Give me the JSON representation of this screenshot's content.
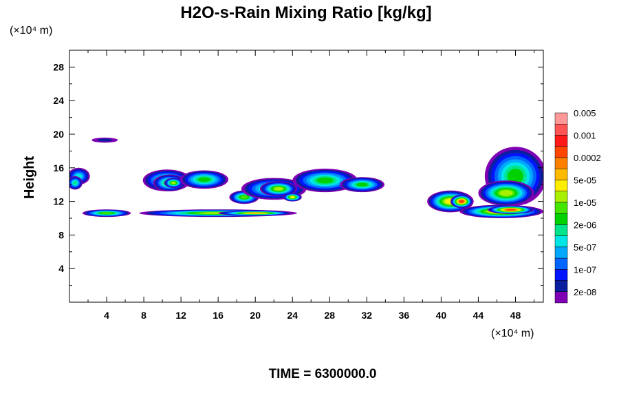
{
  "chart_data": {
    "type": "heatmap",
    "title": "H2O-s-Rain Mixing Ratio [kg/kg]",
    "xlabel": "",
    "ylabel": "Height",
    "x_unit": "(×10⁴ m)",
    "y_unit": "(×10⁴ m)",
    "xlim": [
      0,
      51
    ],
    "ylim": [
      0,
      30
    ],
    "x_ticks": [
      4,
      8,
      12,
      16,
      20,
      24,
      28,
      32,
      36,
      40,
      44,
      48
    ],
    "y_ticks": [
      4,
      8,
      12,
      16,
      20,
      24,
      28
    ],
    "grid": false,
    "colorbar": {
      "levels": [
        "2e-08",
        "1e-07",
        "5e-07",
        "2e-06",
        "1e-05",
        "5e-05",
        "0.0002",
        "0.001",
        "0.005"
      ],
      "colors": [
        "#7f00b2",
        "#0a1fa0",
        "#0014ff",
        "#0066ff",
        "#00a8ff",
        "#00e5e5",
        "#00e58c",
        "#00d200",
        "#44e600",
        "#a8f000",
        "#ffee00",
        "#ffbb00",
        "#ff8000",
        "#ff4500",
        "#ff1a1a",
        "#ff5555",
        "#ff9999"
      ]
    },
    "regions": [
      {
        "x": 1.0,
        "y": 15.0,
        "rx": 1.2,
        "ry": 1.0,
        "level": 5
      },
      {
        "x": 0.6,
        "y": 14.2,
        "rx": 0.8,
        "ry": 0.8,
        "level": 6
      },
      {
        "x": 3.8,
        "y": 19.3,
        "rx": 1.4,
        "ry": 0.3,
        "level": 1
      },
      {
        "x": 10.5,
        "y": 14.5,
        "rx": 2.6,
        "ry": 1.3,
        "level": 7
      },
      {
        "x": 10.8,
        "y": 14.2,
        "rx": 1.8,
        "ry": 1.0,
        "level": 8
      },
      {
        "x": 11.2,
        "y": 14.2,
        "rx": 1.0,
        "ry": 0.6,
        "level": 9
      },
      {
        "x": 14.5,
        "y": 14.6,
        "rx": 2.6,
        "ry": 1.1,
        "level": 7
      },
      {
        "x": 18.8,
        "y": 12.5,
        "rx": 1.6,
        "ry": 0.8,
        "level": 8
      },
      {
        "x": 22.0,
        "y": 13.5,
        "rx": 3.5,
        "ry": 1.3,
        "level": 7
      },
      {
        "x": 22.5,
        "y": 13.5,
        "rx": 2.0,
        "ry": 0.9,
        "level": 9
      },
      {
        "x": 24.0,
        "y": 12.5,
        "rx": 1.0,
        "ry": 0.5,
        "level": 10
      },
      {
        "x": 27.5,
        "y": 14.5,
        "rx": 3.5,
        "ry": 1.4,
        "level": 7
      },
      {
        "x": 31.5,
        "y": 14.0,
        "rx": 2.4,
        "ry": 0.9,
        "level": 7
      },
      {
        "x": 4.0,
        "y": 10.6,
        "rx": 2.6,
        "ry": 0.45,
        "level": 8
      },
      {
        "x": 16.0,
        "y": 10.6,
        "rx": 8.5,
        "ry": 0.45,
        "level": 9
      },
      {
        "x": 20.0,
        "y": 10.6,
        "rx": 4.0,
        "ry": 0.3,
        "level": 11
      },
      {
        "x": 41.0,
        "y": 12.0,
        "rx": 2.5,
        "ry": 1.3,
        "level": 10
      },
      {
        "x": 42.2,
        "y": 12.0,
        "rx": 1.2,
        "ry": 0.8,
        "level": 13
      },
      {
        "x": 48.0,
        "y": 15.0,
        "rx": 3.3,
        "ry": 3.5,
        "level": 7
      },
      {
        "x": 47.0,
        "y": 13.0,
        "rx": 3.0,
        "ry": 1.5,
        "level": 9
      },
      {
        "x": 46.5,
        "y": 10.8,
        "rx": 4.5,
        "ry": 0.8,
        "level": 11
      },
      {
        "x": 47.5,
        "y": 11.0,
        "rx": 2.5,
        "ry": 0.5,
        "level": 13
      }
    ]
  },
  "time_label": "TIME = 6300000.0"
}
